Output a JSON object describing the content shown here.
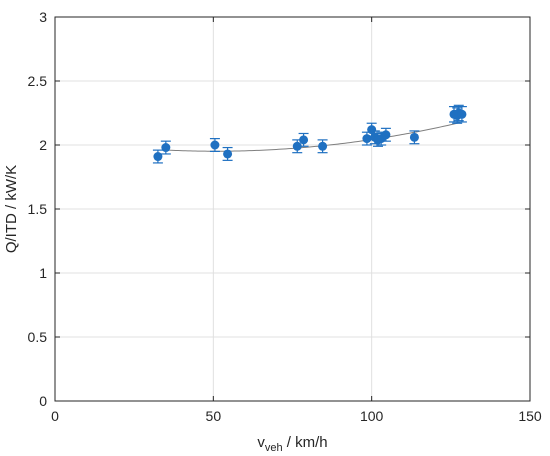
{
  "chart_data": {
    "type": "scatter",
    "xlabel": "v",
    "xlabel_sub": "veh",
    "xlabel_unit": " / km/h",
    "ylabel": "Q/ITD / kW/K",
    "xlim": [
      0,
      150
    ],
    "ylim": [
      0,
      3
    ],
    "xticks": [
      0,
      50,
      100,
      150
    ],
    "yticks": [
      0,
      0.5,
      1,
      1.5,
      2,
      2.5,
      3
    ],
    "ytick_labels": [
      "0",
      "0.5",
      "1",
      "1.5",
      "2",
      "2.5",
      "3"
    ],
    "grid": true,
    "colors": {
      "points": "#1f70c1",
      "fit": "#7f7f7f",
      "grid": "#e0e0e0",
      "axis": "#262626"
    },
    "series": [
      {
        "values": [
          {
            "x": 32.5,
            "y": 1.91,
            "err": 0.05
          },
          {
            "x": 35.0,
            "y": 1.98,
            "err": 0.05
          },
          {
            "x": 50.5,
            "y": 2.0,
            "err": 0.05
          },
          {
            "x": 54.5,
            "y": 1.93,
            "err": 0.05
          },
          {
            "x": 76.5,
            "y": 1.99,
            "err": 0.05
          },
          {
            "x": 78.5,
            "y": 2.04,
            "err": 0.05
          },
          {
            "x": 84.5,
            "y": 1.99,
            "err": 0.05
          },
          {
            "x": 98.5,
            "y": 2.05,
            "err": 0.05
          },
          {
            "x": 100.0,
            "y": 2.12,
            "err": 0.05
          },
          {
            "x": 101.0,
            "y": 2.06,
            "err": 0.05
          },
          {
            "x": 102.0,
            "y": 2.04,
            "err": 0.05
          },
          {
            "x": 103.0,
            "y": 2.05,
            "err": 0.05
          },
          {
            "x": 104.5,
            "y": 2.08,
            "err": 0.05
          },
          {
            "x": 113.5,
            "y": 2.06,
            "err": 0.05
          },
          {
            "x": 126.0,
            "y": 2.24,
            "err": 0.06
          },
          {
            "x": 127.0,
            "y": 2.23,
            "err": 0.06
          },
          {
            "x": 127.5,
            "y": 2.25,
            "err": 0.06
          },
          {
            "x": 128.5,
            "y": 2.24,
            "err": 0.06
          }
        ]
      }
    ],
    "fit": {
      "type": "quadratic",
      "x_range": [
        35,
        128
      ],
      "coefficients": [
        2.0476,
        -0.0038,
        3.75e-05
      ]
    }
  }
}
